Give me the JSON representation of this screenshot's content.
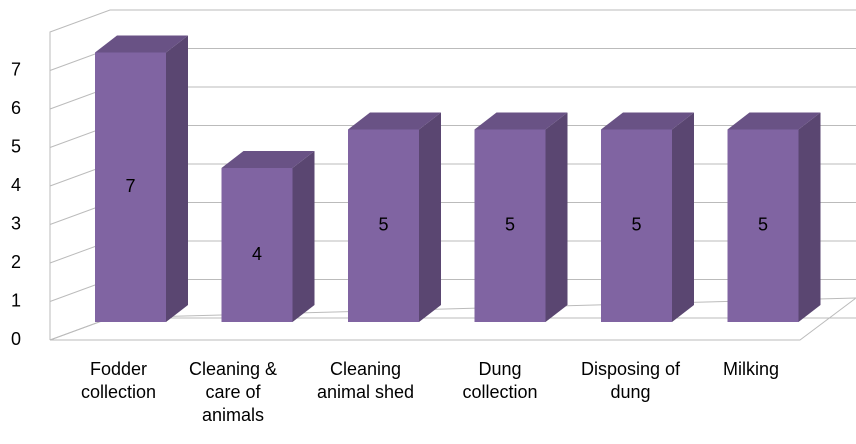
{
  "chart_data": {
    "type": "bar3d",
    "categories": [
      "Fodder collection",
      "Cleaning & care of animals",
      "Cleaning animal shed",
      "Dung collection",
      "Disposing of dung",
      "Milking"
    ],
    "values": [
      7,
      4,
      5,
      5,
      5,
      5
    ],
    "color": "#8064a2",
    "ylim": [
      0,
      8
    ],
    "yticks": [
      0,
      1,
      2,
      3,
      4,
      5,
      6,
      7
    ],
    "grid": true
  }
}
